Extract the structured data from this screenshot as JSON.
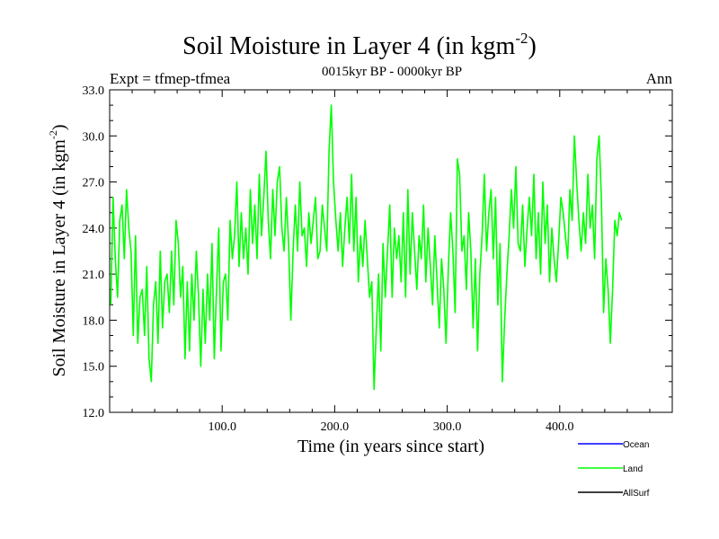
{
  "chart_data": {
    "type": "line",
    "title": "Soil Moisture in Layer 4 (in kgm",
    "title_superscript": "-2",
    "title_close": ")",
    "subtitle_left": "Expt = tfmep-tfmea",
    "subtitle_center": "0015kyr BP - 0000kyr BP",
    "subtitle_right": "Ann",
    "xlabel": "Time (in years since start)",
    "ylabel": "Soil Moisture in Layer 4 (in kgm",
    "ylabel_superscript": "-2",
    "ylabel_close": ")",
    "xlim": [
      0,
      500
    ],
    "ylim": [
      12.0,
      33.0
    ],
    "xticks": [
      100,
      200,
      300,
      400
    ],
    "xtick_labels": [
      "100.0",
      "200.0",
      "300.0",
      "400.0"
    ],
    "yticks": [
      12,
      15,
      18,
      21,
      24,
      27,
      30,
      33
    ],
    "ytick_labels": [
      "12.0",
      "15.0",
      "18.0",
      "21.0",
      "24.0",
      "27.0",
      "30.0",
      "33.0"
    ],
    "legend": [
      {
        "name": "Ocean",
        "color": "#0000ff"
      },
      {
        "name": "Land",
        "color": "#00ff00"
      },
      {
        "name": "AllSurf",
        "color": "#000000"
      }
    ],
    "series": [
      {
        "name": "Land",
        "color": "#00ff00",
        "x_start": 1,
        "x_step": 2,
        "values": [
          19.0,
          26.0,
          22.0,
          19.5,
          24.5,
          25.5,
          22.0,
          26.5,
          24.0,
          22.5,
          17.0,
          23.5,
          16.5,
          19.5,
          20.0,
          17.0,
          21.5,
          15.5,
          14.0,
          19.0,
          20.5,
          16.5,
          22.5,
          17.5,
          20.5,
          21.0,
          18.5,
          22.5,
          19.0,
          24.5,
          23.0,
          19.5,
          21.5,
          15.5,
          20.5,
          16.0,
          21.0,
          18.0,
          22.5,
          19.5,
          15.0,
          20.0,
          16.5,
          21.0,
          18.0,
          23.0,
          15.5,
          20.0,
          24.0,
          16.0,
          20.5,
          21.0,
          18.0,
          24.5,
          22.0,
          23.5,
          27.0,
          21.5,
          25.0,
          22.0,
          24.0,
          21.0,
          26.5,
          23.0,
          25.5,
          22.0,
          27.5,
          23.5,
          26.0,
          29.0,
          24.5,
          22.0,
          26.5,
          23.5,
          27.0,
          28.0,
          24.0,
          22.5,
          26.0,
          23.0,
          18.0,
          22.5,
          25.5,
          22.5,
          27.0,
          23.5,
          24.0,
          21.5,
          25.0,
          23.0,
          24.5,
          26.0,
          22.0,
          22.5,
          25.5,
          24.0,
          22.5,
          29.0,
          32.0,
          27.0,
          24.5,
          22.5,
          25.0,
          21.5,
          24.0,
          26.0,
          23.0,
          27.5,
          22.5,
          26.0,
          20.5,
          23.5,
          21.5,
          24.5,
          22.0,
          19.5,
          20.5,
          13.5,
          17.5,
          21.0,
          16.0,
          23.0,
          19.5,
          22.5,
          25.5,
          19.5,
          24.0,
          22.0,
          23.5,
          20.5,
          25.0,
          19.5,
          26.5,
          21.0,
          25.0,
          22.5,
          20.0,
          23.5,
          22.0,
          25.5,
          20.5,
          24.0,
          21.5,
          19.0,
          23.5,
          20.5,
          17.5,
          22.0,
          20.0,
          16.5,
          21.5,
          25.0,
          22.5,
          18.5,
          28.5,
          27.5,
          22.5,
          23.5,
          20.0,
          25.0,
          22.5,
          17.5,
          22.0,
          16.0,
          21.0,
          23.5,
          27.5,
          22.5,
          25.0,
          26.5,
          22.0,
          26.0,
          19.0,
          23.0,
          14.0,
          18.0,
          21.0,
          23.5,
          26.5,
          24.0,
          28.0,
          23.0,
          22.5,
          25.5,
          21.5,
          24.0,
          26.0,
          23.5,
          27.5,
          22.0,
          25.0,
          21.0,
          27.0,
          23.0,
          25.5,
          20.5,
          24.0,
          22.0,
          20.5,
          23.0,
          26.0,
          25.0,
          23.5,
          22.0,
          26.5,
          24.5,
          30.0,
          27.0,
          24.5,
          22.5,
          25.0,
          23.0,
          27.5,
          24.0,
          25.5,
          22.0,
          28.5,
          30.0,
          26.0,
          18.5,
          22.0,
          20.0,
          16.5,
          20.0,
          24.5,
          23.5,
          25.0,
          24.5
        ]
      }
    ]
  }
}
